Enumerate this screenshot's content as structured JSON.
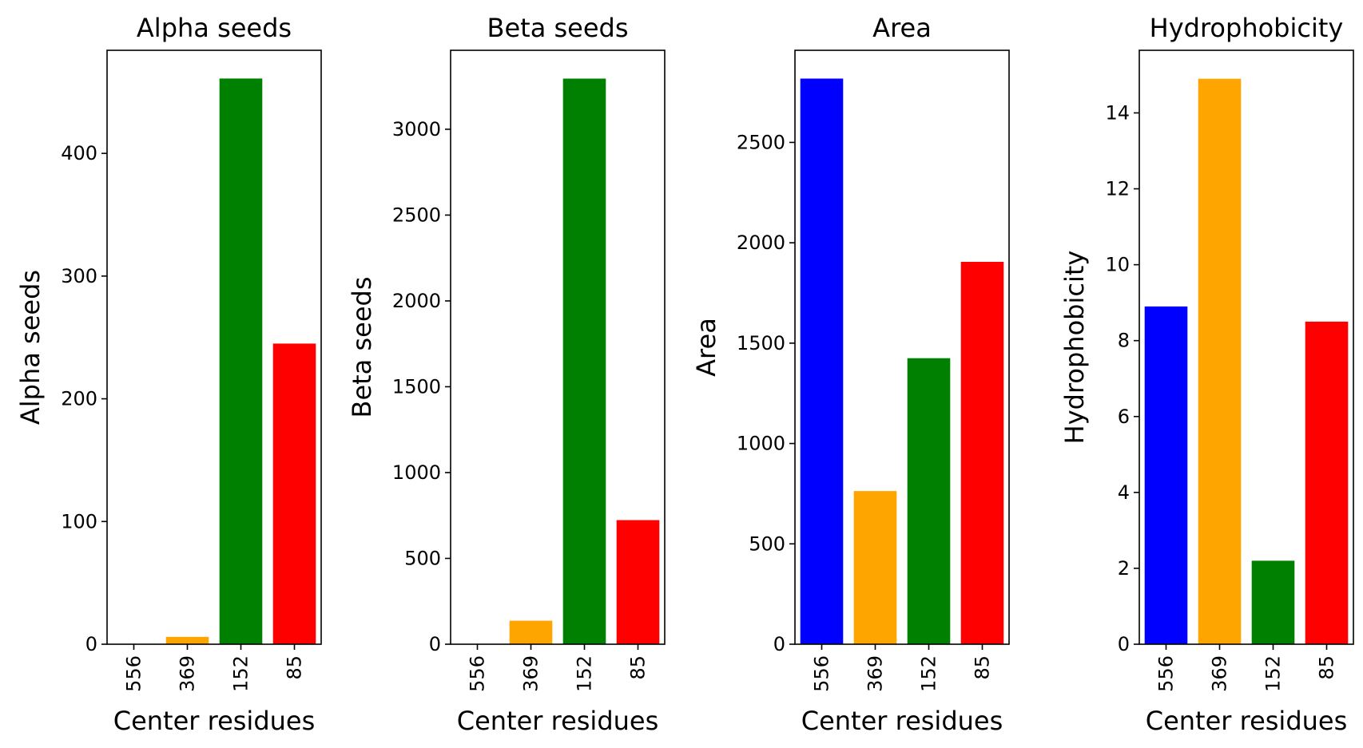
{
  "chart_data": [
    {
      "type": "bar",
      "title": "Alpha seeds",
      "xlabel": "Center residues",
      "ylabel": "Alpha seeds",
      "categories": [
        "556",
        "369",
        "152",
        "85"
      ],
      "values": [
        0,
        6,
        461,
        245
      ],
      "colors": [
        "#0000ff",
        "#ffa500",
        "#008000",
        "#ff0000"
      ],
      "ylim": [
        0,
        484
      ],
      "yticks": [
        0,
        100,
        200,
        300,
        400
      ],
      "grid": false,
      "legend": "none"
    },
    {
      "type": "bar",
      "title": "Beta seeds",
      "xlabel": "Center residues",
      "ylabel": "Beta seeds",
      "categories": [
        "556",
        "369",
        "152",
        "85"
      ],
      "values": [
        0,
        137,
        3295,
        723
      ],
      "colors": [
        "#0000ff",
        "#ffa500",
        "#008000",
        "#ff0000"
      ],
      "ylim": [
        0,
        3460
      ],
      "yticks": [
        0,
        500,
        1000,
        1500,
        2000,
        2500,
        3000
      ],
      "grid": false,
      "legend": "none"
    },
    {
      "type": "bar",
      "title": "Area",
      "xlabel": "Center residues",
      "ylabel": "Area",
      "categories": [
        "556",
        "369",
        "152",
        "85"
      ],
      "values": [
        2818,
        763,
        1425,
        1905
      ],
      "colors": [
        "#0000ff",
        "#ffa500",
        "#008000",
        "#ff0000"
      ],
      "ylim": [
        0,
        2959
      ],
      "yticks": [
        0,
        500,
        1000,
        1500,
        2000,
        2500
      ],
      "grid": false,
      "legend": "none"
    },
    {
      "type": "bar",
      "title": "Hydrophobicity",
      "xlabel": "Center residues",
      "ylabel": "Hydrophobicity",
      "categories": [
        "556",
        "369",
        "152",
        "85"
      ],
      "values": [
        8.9,
        14.9,
        2.2,
        8.5
      ],
      "colors": [
        "#0000ff",
        "#ffa500",
        "#008000",
        "#ff0000"
      ],
      "ylim": [
        0,
        15.65
      ],
      "yticks": [
        0,
        2,
        4,
        6,
        8,
        10,
        12,
        14
      ],
      "grid": false,
      "legend": "none"
    }
  ]
}
